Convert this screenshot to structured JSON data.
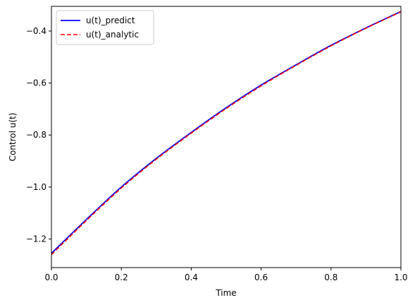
{
  "chart_data": {
    "type": "line",
    "title": "",
    "xlabel": "Time",
    "ylabel": "Control u(t)",
    "xlim": [
      0.0,
      1.0
    ],
    "ylim": [
      -1.31,
      -0.305
    ],
    "x_ticks": [
      0.0,
      0.2,
      0.4,
      0.6,
      0.8,
      1.0
    ],
    "x_tick_labels": [
      "0.0",
      "0.2",
      "0.4",
      "0.6",
      "0.8",
      "1.0"
    ],
    "y_ticks": [
      -1.2,
      -1.0,
      -0.8,
      -0.6,
      -0.4
    ],
    "y_tick_labels": [
      "−1.2",
      "−1.0",
      "−0.8",
      "−0.6",
      "−0.4"
    ],
    "grid": false,
    "legend_position": "top-left",
    "x": [
      0.0,
      0.1,
      0.2,
      0.3,
      0.4,
      0.5,
      0.6,
      0.7,
      0.8,
      0.9,
      1.0
    ],
    "series": [
      {
        "name": "u(t)_predict",
        "color": "#0000ff",
        "style": "solid",
        "values": [
          -1.255,
          -1.125,
          -1.0,
          -0.89,
          -0.79,
          -0.695,
          -0.608,
          -0.53,
          -0.455,
          -0.388,
          -0.325
        ]
      },
      {
        "name": "u(t)_analytic",
        "color": "#ff0000",
        "style": "dashed",
        "values": [
          -1.26,
          -1.129,
          -1.004,
          -0.893,
          -0.793,
          -0.698,
          -0.611,
          -0.532,
          -0.457,
          -0.389,
          -0.326
        ]
      }
    ]
  }
}
